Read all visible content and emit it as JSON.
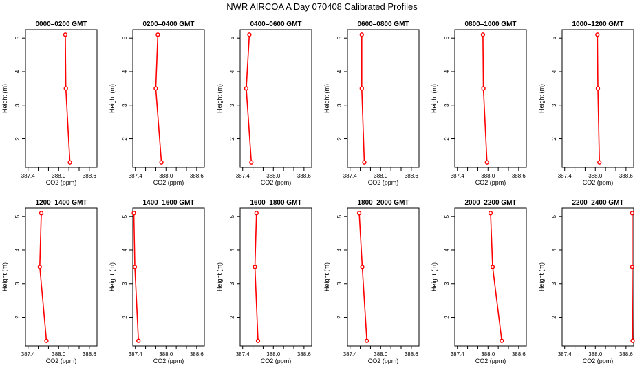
{
  "title": "NWR AIRCOA A  Day 070408  Calibrated Profiles",
  "colors": {
    "series": "#ff0000",
    "axis": "#000000",
    "background": "#ffffff"
  },
  "chart_data": {
    "type": "line",
    "xlabel": "CO2 (ppm)",
    "ylabel": "Height (m)",
    "xlim": [
      387.35,
      388.75
    ],
    "ylim": [
      1.15,
      5.25
    ],
    "xticks": [
      387.4,
      387.6,
      387.8,
      388.0,
      388.2,
      388.4,
      388.6
    ],
    "xtick_labels": [
      "387.4",
      "",
      "",
      "388.0",
      "",
      "",
      "388.6"
    ],
    "yticks": [
      2,
      3,
      4,
      5
    ],
    "heights": [
      5.1,
      3.5,
      1.3
    ],
    "grid": false,
    "panels": [
      {
        "title": "0000–0200 GMT",
        "values": [
          388.13,
          388.14,
          388.22
        ]
      },
      {
        "title": "0200–0400 GMT",
        "values": [
          387.84,
          387.8,
          387.91
        ]
      },
      {
        "title": "0400–0600 GMT",
        "values": [
          387.53,
          387.47,
          387.57
        ]
      },
      {
        "title": "0600–0800 GMT",
        "values": [
          387.63,
          387.63,
          387.68
        ]
      },
      {
        "title": "0800–1000 GMT",
        "values": [
          387.9,
          387.91,
          387.98
        ]
      },
      {
        "title": "1000–1200 GMT",
        "values": [
          388.04,
          388.05,
          388.08
        ]
      },
      {
        "title": "1200–1400 GMT",
        "values": [
          387.66,
          387.63,
          387.76
        ]
      },
      {
        "title": "1400–1600 GMT",
        "values": [
          387.37,
          387.39,
          387.46
        ]
      },
      {
        "title": "1600–1800 GMT",
        "values": [
          387.67,
          387.64,
          387.7
        ]
      },
      {
        "title": "1800–2000 GMT",
        "values": [
          387.58,
          387.64,
          387.73
        ]
      },
      {
        "title": "2000–2200 GMT",
        "values": [
          388.05,
          388.09,
          388.27
        ]
      },
      {
        "title": "2200–2400 GMT",
        "values": [
          388.72,
          388.72,
          388.73
        ]
      }
    ]
  }
}
